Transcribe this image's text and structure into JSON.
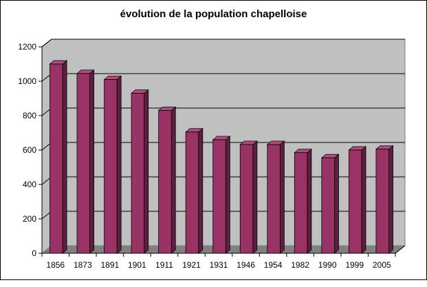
{
  "chart_data": {
    "type": "bar",
    "title": "évolution de la population chapelloise",
    "xlabel": "",
    "ylabel": "",
    "categories": [
      "1856",
      "1873",
      "1891",
      "1901",
      "1911",
      "1921",
      "1931",
      "1946",
      "1954",
      "1982",
      "1990",
      "1999",
      "2005"
    ],
    "values": [
      1100,
      1045,
      1010,
      930,
      830,
      705,
      660,
      632,
      632,
      585,
      555,
      600,
      605
    ],
    "ylim": [
      0,
      1200
    ],
    "yticks": [
      0,
      200,
      400,
      600,
      800,
      1000,
      1200
    ],
    "grid": true,
    "legend": "none",
    "style": "3d-column",
    "colors": {
      "bar_front": "#993366",
      "bar_side": "#5c1f3d",
      "bar_top": "#b04d80",
      "wall": "#c0c0c0",
      "floor": "#808080",
      "gridline": "#000000"
    }
  }
}
